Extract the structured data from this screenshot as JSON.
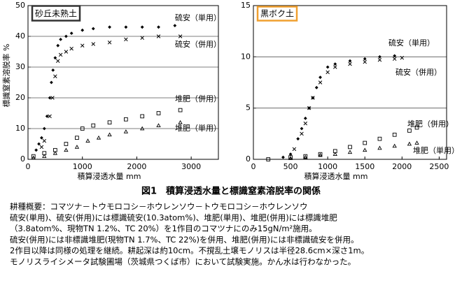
{
  "chart_data": [
    {
      "type": "scatter",
      "label": "砂丘未熟土",
      "label_color": "#333333",
      "ylabel": "標識窒素溶脱率 %",
      "xlabel": "積算浸透水量 mm",
      "xlim": [
        0,
        3500
      ],
      "xticks": [
        0,
        1000,
        2000,
        3000
      ],
      "ylim": [
        0,
        50
      ],
      "yticks": [
        0,
        10,
        20,
        30,
        40,
        50
      ],
      "grid": true,
      "series": [
        {
          "name": "硫安（単用）",
          "color": "#000000",
          "marker": "diamond",
          "x": [
            150,
            200,
            250,
            300,
            350,
            400,
            430,
            460,
            500,
            550,
            600,
            700,
            800,
            1000,
            1200,
            1500,
            1800,
            2100,
            2400,
            2700
          ],
          "values": [
            3,
            5,
            7,
            10,
            14,
            20,
            25,
            29,
            33,
            37,
            39,
            40,
            41,
            42,
            42.5,
            43,
            43,
            43,
            43,
            43.5
          ]
        },
        {
          "name": "硫安（併用）",
          "color": "#000000",
          "marker": "x",
          "x": [
            250,
            300,
            400,
            450,
            500,
            550,
            600,
            700,
            800,
            1000,
            1200,
            1500,
            1800,
            2100,
            2400,
            2800
          ],
          "values": [
            4,
            6,
            14,
            20,
            27,
            32,
            34,
            35,
            36,
            37,
            37.5,
            38,
            39,
            39.5,
            40,
            40
          ]
        },
        {
          "name": "堆肥（併用）",
          "color": "#000000",
          "marker": "square",
          "x": [
            100,
            300,
            500,
            700,
            900,
            1000,
            1200,
            1500,
            1800,
            2100,
            2400,
            2800
          ],
          "values": [
            1,
            2,
            3,
            5,
            7,
            10,
            11,
            12,
            13,
            14,
            15,
            16
          ]
        },
        {
          "name": "堆肥（単用）",
          "color": "#000000",
          "marker": "triangle",
          "x": [
            100,
            300,
            500,
            700,
            900,
            1100,
            1300,
            1500,
            1800,
            2100,
            2400,
            2800
          ],
          "values": [
            0.5,
            1,
            2,
            3,
            4,
            6,
            7,
            8,
            9,
            10,
            11,
            12
          ]
        }
      ]
    },
    {
      "type": "scatter",
      "label": "黒ボク土",
      "label_color": "#f0a030",
      "xlabel": "積算浸透水量 mm",
      "xlim": [
        0,
        2600
      ],
      "xticks": [
        0,
        500,
        1000,
        1500,
        2000,
        2500
      ],
      "ylim": [
        0,
        15
      ],
      "yticks": [
        0,
        5,
        10,
        15
      ],
      "grid": true,
      "series": [
        {
          "name": "硫安（単用）",
          "color": "#000000",
          "marker": "diamond",
          "x": [
            400,
            500,
            600,
            650,
            700,
            750,
            800,
            850,
            900,
            1000,
            1100,
            1300,
            1500,
            1700,
            1900
          ],
          "values": [
            0.2,
            0.5,
            2,
            3,
            4,
            5,
            6,
            7,
            8,
            9,
            9.3,
            9.6,
            9.8,
            10,
            10.1
          ]
        },
        {
          "name": "硫安（併用）",
          "color": "#000000",
          "marker": "x",
          "x": [
            550,
            650,
            700,
            750,
            800,
            900,
            1000,
            1100,
            1300,
            1500,
            1700,
            1900,
            2000
          ],
          "values": [
            1,
            2.5,
            3.5,
            5,
            6,
            7.5,
            8.5,
            9,
            9.3,
            9.5,
            9.7,
            9.8,
            9.9
          ]
        },
        {
          "name": "堆肥（併用）",
          "color": "#000000",
          "marker": "square",
          "x": [
            200,
            500,
            700,
            900,
            1100,
            1300,
            1500,
            1700,
            1900,
            2100,
            2200
          ],
          "values": [
            0,
            0.2,
            0.3,
            0.5,
            0.8,
            1.2,
            1.6,
            2,
            2.4,
            2.8,
            3.1
          ]
        },
        {
          "name": "堆肥（単用）",
          "color": "#000000",
          "marker": "triangle",
          "x": [
            500,
            700,
            900,
            1100,
            1300,
            1500,
            1700,
            1900,
            2100,
            2200
          ],
          "values": [
            0.1,
            0.2,
            0.4,
            0.5,
            0.7,
            0.9,
            1.1,
            1.3,
            1.5,
            1.6
          ]
        }
      ]
    }
  ],
  "caption": {
    "title": "図1　積算浸透水量と標識窒素溶脱率の関係",
    "lines": [
      "耕種概要：コマツナ－トウモロコシ－ホウレンソウ－トウモロコシ－ホウレンソウ",
      "硫安(単用)、硫安(併用)には標識硫安(10.3atom%)、堆肥(単用)、堆肥(併用)には標識堆肥",
      "（3.8atom%、現物TN 1.2%、TC 20%）を1作目のコマツナにのみ15gN/m²施用。",
      "硫安(併用)には非標識堆肥(現物TN 1.7%、TC 22%)を併用、堆肥(併用)には非標識硫安を併用。",
      "2作目以降は同様の処理を継続。耕起深は約10cm。不撹乱土壌モノリスは半径28.6cm×深さ1m。",
      "モノリスライシメータ試験圃場（茨城県つくば市）において試験実施。かん水は行わなかった。"
    ]
  }
}
